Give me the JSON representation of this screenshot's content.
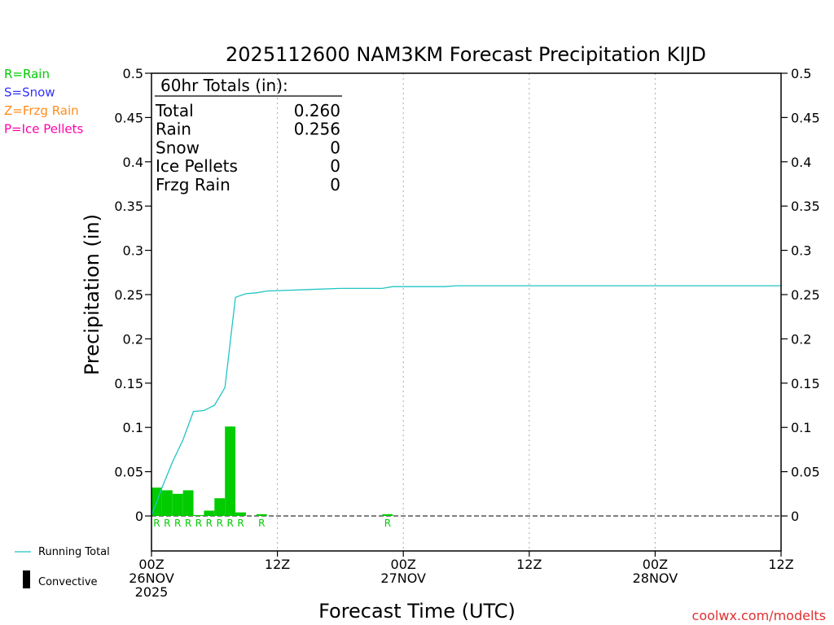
{
  "chart_data": {
    "type": "bar+line",
    "title": "2025112600 NAM3KM Forecast Precipitation KIJD",
    "xlabel": "Forecast Time (UTC)",
    "ylabel": "Precipitation (in)",
    "ylim": [
      0,
      0.5
    ],
    "xlim_hours": [
      0,
      60
    ],
    "y_ticks": [
      0,
      0.05,
      0.1,
      0.15,
      0.2,
      0.25,
      0.3,
      0.35,
      0.4,
      0.45,
      0.5
    ],
    "y_tick_labels": [
      "0",
      "0.05",
      "0.1",
      "0.15",
      "0.2",
      "0.25",
      "0.3",
      "0.35",
      "0.4",
      "0.45",
      "0.5"
    ],
    "x_ticks": [
      {
        "hour": 0,
        "lines": [
          "00Z",
          "26NOV",
          "2025"
        ]
      },
      {
        "hour": 12,
        "lines": [
          "12Z"
        ]
      },
      {
        "hour": 24,
        "lines": [
          "00Z",
          "27NOV"
        ]
      },
      {
        "hour": 36,
        "lines": [
          "12Z"
        ]
      },
      {
        "hour": 48,
        "lines": [
          "00Z",
          "28NOV"
        ]
      },
      {
        "hour": 60,
        "lines": [
          "12Z"
        ]
      }
    ],
    "bars": [
      {
        "hour": 1,
        "value": 0.032,
        "type": "R"
      },
      {
        "hour": 2,
        "value": 0.029,
        "type": "R"
      },
      {
        "hour": 3,
        "value": 0.025,
        "type": "R"
      },
      {
        "hour": 4,
        "value": 0.029,
        "type": "R"
      },
      {
        "hour": 5,
        "value": 0.001,
        "type": "R"
      },
      {
        "hour": 6,
        "value": 0.006,
        "type": "R"
      },
      {
        "hour": 7,
        "value": 0.02,
        "type": "R"
      },
      {
        "hour": 8,
        "value": 0.101,
        "type": "R"
      },
      {
        "hour": 9,
        "value": 0.004,
        "type": "R"
      },
      {
        "hour": 11,
        "value": 0.002,
        "type": "R"
      },
      {
        "hour": 23,
        "value": 0.002,
        "type": "R"
      }
    ],
    "running_total": [
      {
        "hour": 0,
        "value": 0.0
      },
      {
        "hour": 1,
        "value": 0.032
      },
      {
        "hour": 2,
        "value": 0.061
      },
      {
        "hour": 3,
        "value": 0.086
      },
      {
        "hour": 4,
        "value": 0.118
      },
      {
        "hour": 5,
        "value": 0.119
      },
      {
        "hour": 6,
        "value": 0.125
      },
      {
        "hour": 7,
        "value": 0.145
      },
      {
        "hour": 8,
        "value": 0.247
      },
      {
        "hour": 9,
        "value": 0.251
      },
      {
        "hour": 10,
        "value": 0.252
      },
      {
        "hour": 11,
        "value": 0.254
      },
      {
        "hour": 18,
        "value": 0.257
      },
      {
        "hour": 22,
        "value": 0.257
      },
      {
        "hour": 23,
        "value": 0.259
      },
      {
        "hour": 28,
        "value": 0.259
      },
      {
        "hour": 29,
        "value": 0.26
      },
      {
        "hour": 60,
        "value": 0.26
      }
    ],
    "legend_types": [
      {
        "label": "R=Rain",
        "color": "#00cc00"
      },
      {
        "label": "S=Snow",
        "color": "#3333ff"
      },
      {
        "label": "Z=Frzg Rain",
        "color": "#ff8c1a"
      },
      {
        "label": "P=Ice Pellets",
        "color": "#ff00aa"
      }
    ],
    "legend_lines": {
      "running_total": "Running Total",
      "convective": "Convective"
    },
    "totals_box": {
      "header": "60hr Totals (in):",
      "rows": [
        {
          "label": "Total",
          "value": "0.260"
        },
        {
          "label": "Rain",
          "value": "0.256"
        },
        {
          "label": "Snow",
          "value": "0"
        },
        {
          "label": "Ice Pellets",
          "value": "0"
        },
        {
          "label": "Frzg Rain",
          "value": "0"
        }
      ]
    },
    "credit": "coolwx.com/modelts",
    "colors": {
      "bar": "#00cc00",
      "line": "#22c4c4",
      "rain_marker": "#00cc00",
      "credit": "#e03030",
      "grid": "#aaaaaa"
    }
  }
}
